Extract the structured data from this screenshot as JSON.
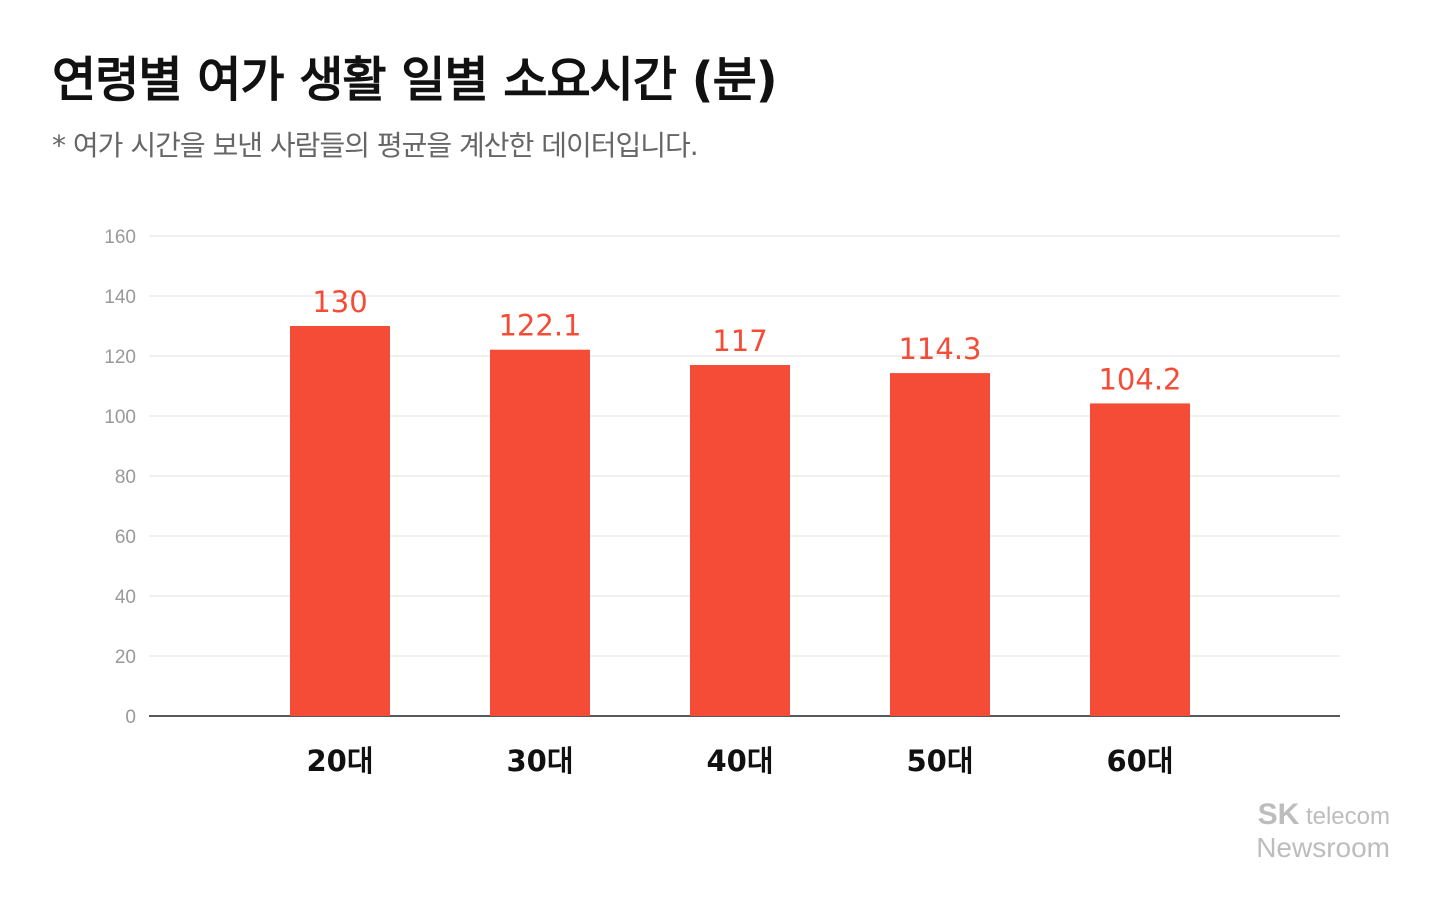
{
  "title": "연령별 여가 생활 일별 소요시간 (분)",
  "subtitle": "* 여가 시간을 보낸 사람들의 평균을 계산한 데이터입니다.",
  "logo": {
    "brand": "SK",
    "text": "telecom",
    "line2": "Newsroom"
  },
  "chart_data": {
    "type": "bar",
    "title": "연령별 여가 생활 일별 소요시간 (분)",
    "categories": [
      "20대",
      "30대",
      "40대",
      "50대",
      "60대"
    ],
    "values": [
      130,
      122.1,
      117,
      114.3,
      104.2
    ],
    "data_labels": [
      "130",
      "122.1",
      "117",
      "114.3",
      "104.2"
    ],
    "ylim": [
      0,
      160
    ],
    "yticks": [
      0,
      20,
      40,
      60,
      80,
      100,
      120,
      140,
      160
    ],
    "grid": true,
    "legend": "none",
    "colors": {
      "bar": "#f44c36",
      "label": "#f44c36",
      "grid": "#e0e0e0",
      "axis": "#222222",
      "tick": "#999999"
    }
  }
}
